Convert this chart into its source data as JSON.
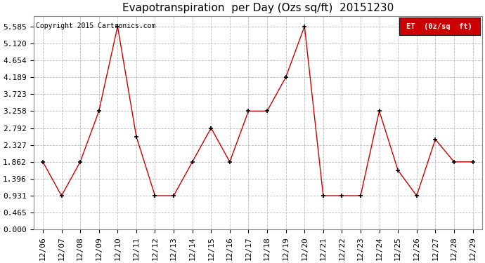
{
  "title": "Evapotranspiration  per Day (Ozs sq/ft)  20151230",
  "copyright": "Copyright 2015 Cartronics.com",
  "legend_label": "ET  (0z/sq  ft)",
  "x_labels": [
    "12/06",
    "12/07",
    "12/08",
    "12/09",
    "12/10",
    "12/11",
    "12/12",
    "12/13",
    "12/14",
    "12/15",
    "12/16",
    "12/17",
    "12/18",
    "12/19",
    "12/20",
    "12/21",
    "12/22",
    "12/23",
    "12/24",
    "12/25",
    "12/26",
    "12/27",
    "12/28",
    "12/29"
  ],
  "y_values": [
    1.862,
    0.931,
    1.862,
    3.258,
    5.585,
    2.56,
    0.931,
    0.931,
    1.862,
    2.792,
    1.862,
    3.258,
    3.258,
    4.189,
    5.585,
    0.931,
    0.931,
    0.931,
    3.258,
    1.63,
    0.931,
    2.48,
    1.862,
    1.862
  ],
  "line_color": "#cc0000",
  "marker_color": "#000000",
  "background_color": "#ffffff",
  "grid_color": "#bbbbbb",
  "y_ticks": [
    0.0,
    0.465,
    0.931,
    1.396,
    1.862,
    2.327,
    2.792,
    3.258,
    3.723,
    4.189,
    4.654,
    5.12,
    5.585
  ],
  "ylim_min": 0.0,
  "ylim_max": 5.585,
  "title_fontsize": 11,
  "tick_fontsize": 8,
  "copyright_fontsize": 7,
  "legend_bg_color": "#cc0000",
  "legend_text_color": "#ffffff",
  "legend_fontsize": 7.5
}
